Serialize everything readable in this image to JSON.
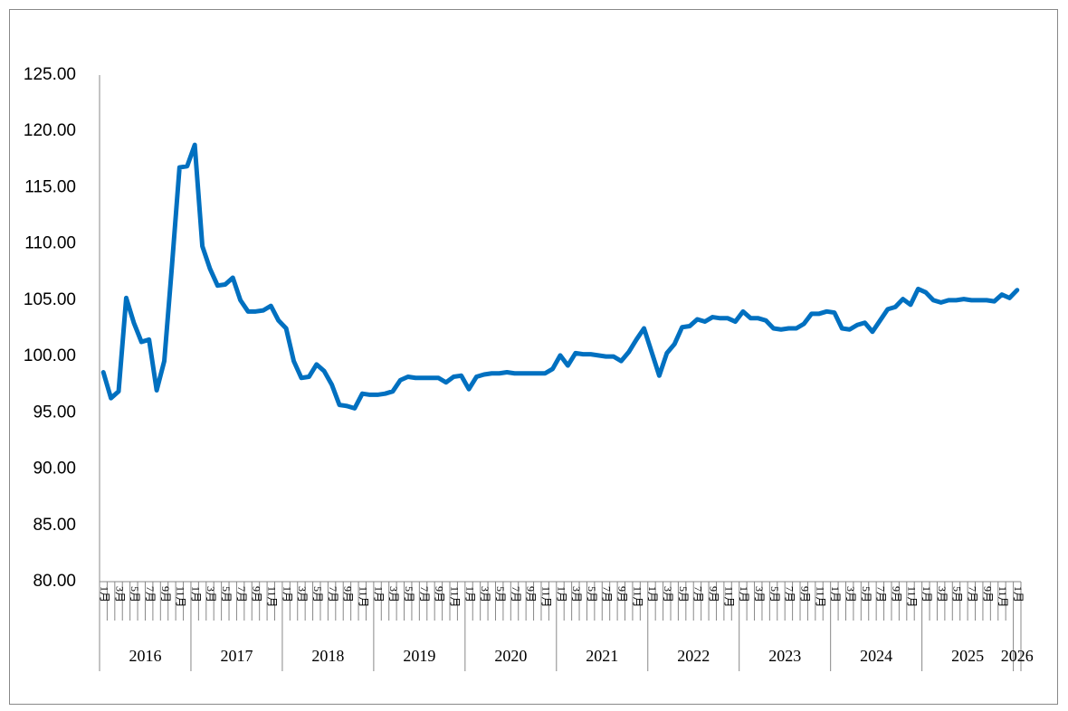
{
  "chart_data": {
    "type": "line",
    "categories": [
      "1月",
      null,
      "3月",
      null,
      "5月",
      null,
      "7月",
      null,
      "9月",
      null,
      "11月",
      null,
      "1月",
      null,
      "3月",
      null,
      "5月",
      null,
      "7月",
      null,
      "9月",
      null,
      "11月",
      null,
      "1月",
      null,
      "3月",
      null,
      "5月",
      null,
      "7月",
      null,
      "9月",
      null,
      "11月",
      null,
      "1月",
      null,
      "3月",
      null,
      "5月",
      null,
      "7月",
      null,
      "9月",
      null,
      "11月",
      null,
      "1月",
      null,
      "3月",
      null,
      "5月",
      null,
      "7月",
      null,
      "9月",
      null,
      "11月",
      null,
      "1月",
      null,
      "3月",
      null,
      "5月",
      null,
      "7月",
      null,
      "9月",
      null,
      "11月",
      null,
      "1月",
      null,
      "3月",
      null,
      "5月",
      null,
      "7月",
      null,
      "9月",
      null,
      "11月",
      null,
      "1月",
      null,
      "3月",
      null,
      "5月",
      null,
      "7月",
      null,
      "9月",
      null,
      "11月",
      null,
      "1月",
      null,
      "3月",
      null,
      "5月",
      null,
      "7月",
      null,
      "9月",
      null,
      "11月",
      null,
      "1月",
      null,
      "3月",
      null,
      "5月",
      null,
      "7月",
      null,
      "9月",
      null,
      "11月",
      null,
      "1月"
    ],
    "years": [
      "2016",
      "2017",
      "2018",
      "2019",
      "2020",
      "2021",
      "2022",
      "2023",
      "2024",
      "2025",
      "2026"
    ],
    "values": [
      98.6,
      96.3,
      96.9,
      105.2,
      103.0,
      101.3,
      101.5,
      97.0,
      99.6,
      108.0,
      116.8,
      116.9,
      118.8,
      109.8,
      107.8,
      106.3,
      106.4,
      107.0,
      105.0,
      104.0,
      104.0,
      104.1,
      104.5,
      103.2,
      102.5,
      99.6,
      98.1,
      98.2,
      99.3,
      98.7,
      97.5,
      95.7,
      95.6,
      95.4,
      96.7,
      96.6,
      96.6,
      96.7,
      96.9,
      97.9,
      98.2,
      98.1,
      98.1,
      98.1,
      98.1,
      97.7,
      98.2,
      98.3,
      97.1,
      98.2,
      98.4,
      98.5,
      98.5,
      98.6,
      98.5,
      98.5,
      98.5,
      98.5,
      98.5,
      98.9,
      100.1,
      99.2,
      100.3,
      100.2,
      100.2,
      100.1,
      100.0,
      100.0,
      99.6,
      100.4,
      101.5,
      102.5,
      100.4,
      98.3,
      100.3,
      101.1,
      102.6,
      102.7,
      103.3,
      103.1,
      103.5,
      103.4,
      103.4,
      103.1,
      104.0,
      103.4,
      103.4,
      103.2,
      102.5,
      102.4,
      102.5,
      102.5,
      102.9,
      103.8,
      103.8,
      104.0,
      103.9,
      102.5,
      102.4,
      102.8,
      103.0,
      102.2,
      103.2,
      104.2,
      104.4,
      105.1,
      104.6,
      106.0,
      105.7,
      105.0,
      104.8,
      105.0,
      105.0,
      105.1,
      105.0,
      105.0,
      105.0,
      104.9,
      105.5,
      105.2,
      105.9
    ],
    "color": "#0070c0",
    "ylim": [
      80,
      125
    ],
    "yticks": [
      {
        "value": 80,
        "label": "80.00"
      },
      {
        "value": 85,
        "label": "85.00"
      },
      {
        "value": 90,
        "label": "90.00"
      },
      {
        "value": 95,
        "label": "95.00"
      },
      {
        "value": 100,
        "label": "100.00"
      },
      {
        "value": 105,
        "label": "105.00"
      },
      {
        "value": 110,
        "label": "110.00"
      },
      {
        "value": 115,
        "label": "115.00"
      },
      {
        "value": 120,
        "label": "120.00"
      },
      {
        "value": 125,
        "label": "125.00"
      }
    ],
    "grid": false
  }
}
